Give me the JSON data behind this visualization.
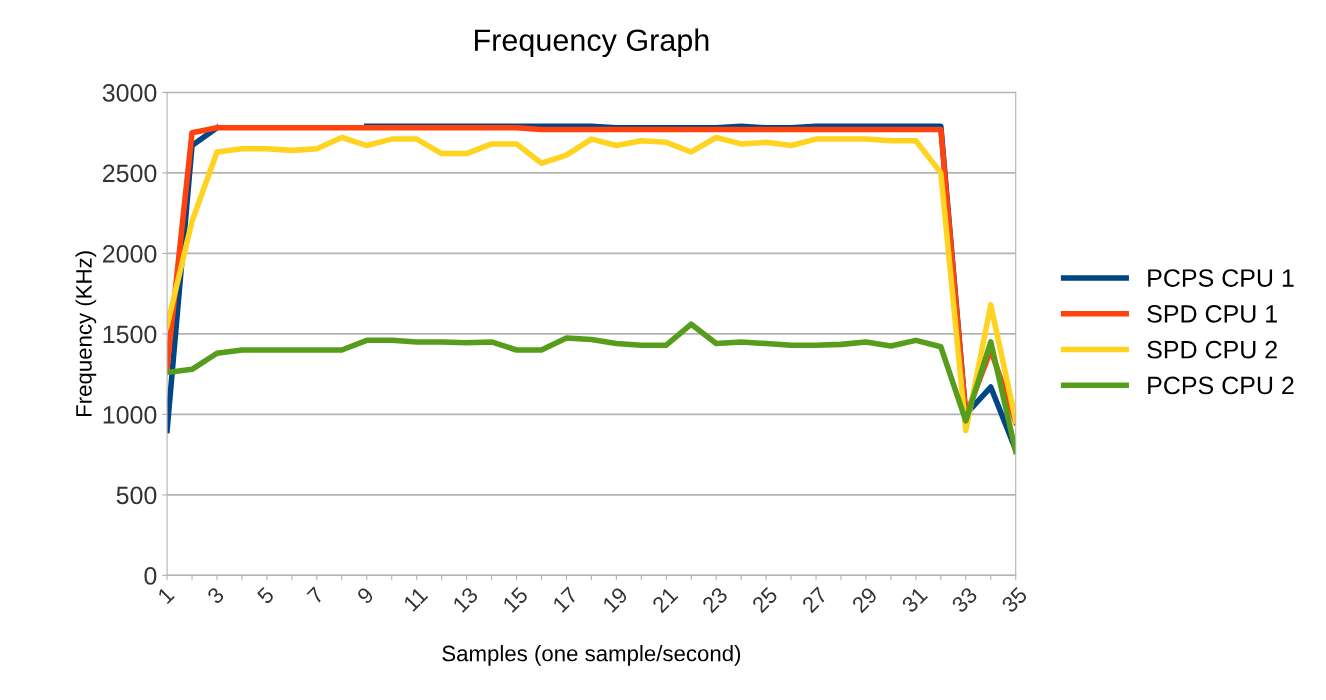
{
  "chart_data": {
    "type": "line",
    "title": "Frequency Graph",
    "xlabel": "Samples (one sample/second)",
    "ylabel": "Frequency (KHz)",
    "categories": [
      "1",
      null,
      "3",
      null,
      "5",
      null,
      "7",
      null,
      "9",
      null,
      "11",
      null,
      "13",
      null,
      "15",
      null,
      "17",
      null,
      "19",
      null,
      "21",
      null,
      "23",
      null,
      "25",
      null,
      "27",
      null,
      "29",
      null,
      "31",
      null,
      "33",
      null,
      "35"
    ],
    "series": [
      {
        "name": "PCPS CPU 1",
        "color": "#004586",
        "values": [
          900,
          2670,
          2780,
          null,
          null,
          null,
          null,
          null,
          2790,
          2790,
          2790,
          2790,
          2790,
          2790,
          2790,
          2790,
          2790,
          2790,
          2780,
          2780,
          2780,
          2780,
          2780,
          2790,
          2780,
          2780,
          2790,
          2790,
          2790,
          2790,
          2790,
          2790,
          1000,
          1170,
          780
        ]
      },
      {
        "name": "SPD CPU 1",
        "color": "#ff420e",
        "values": [
          1290,
          2750,
          2780,
          2780,
          2780,
          2780,
          2780,
          2780,
          2780,
          2780,
          2780,
          2780,
          2780,
          2780,
          2780,
          2770,
          2770,
          2770,
          2770,
          2770,
          2770,
          2770,
          2770,
          2770,
          2770,
          2770,
          2770,
          2770,
          2770,
          2770,
          2770,
          2770,
          990,
          1400,
          950
        ]
      },
      {
        "name": "SPD CPU 2",
        "color": "#ffd320",
        "values": [
          1550,
          2200,
          2630,
          2650,
          2650,
          2640,
          2650,
          2720,
          2670,
          2710,
          2710,
          2620,
          2620,
          2680,
          2680,
          2560,
          2610,
          2710,
          2670,
          2700,
          2690,
          2630,
          2720,
          2680,
          2690,
          2670,
          2710,
          2710,
          2710,
          2700,
          2700,
          2500,
          900,
          1680,
          960
        ]
      },
      {
        "name": "PCPS CPU 2",
        "color": "#579d1c",
        "values": [
          1260,
          1280,
          1380,
          1400,
          1400,
          1400,
          1400,
          1400,
          1460,
          1460,
          1450,
          1450,
          1445,
          1450,
          1400,
          1400,
          1475,
          1465,
          1440,
          1430,
          1430,
          1560,
          1440,
          1450,
          1440,
          1430,
          1430,
          1435,
          1450,
          1425,
          1460,
          1420,
          960,
          1450,
          770
        ]
      }
    ],
    "ylim": [
      0,
      3000
    ],
    "yticks": [
      0,
      500,
      1000,
      1500,
      2000,
      2500,
      3000
    ],
    "grid": "y",
    "legend": "right",
    "marker": "none",
    "line_style": "solid"
  }
}
